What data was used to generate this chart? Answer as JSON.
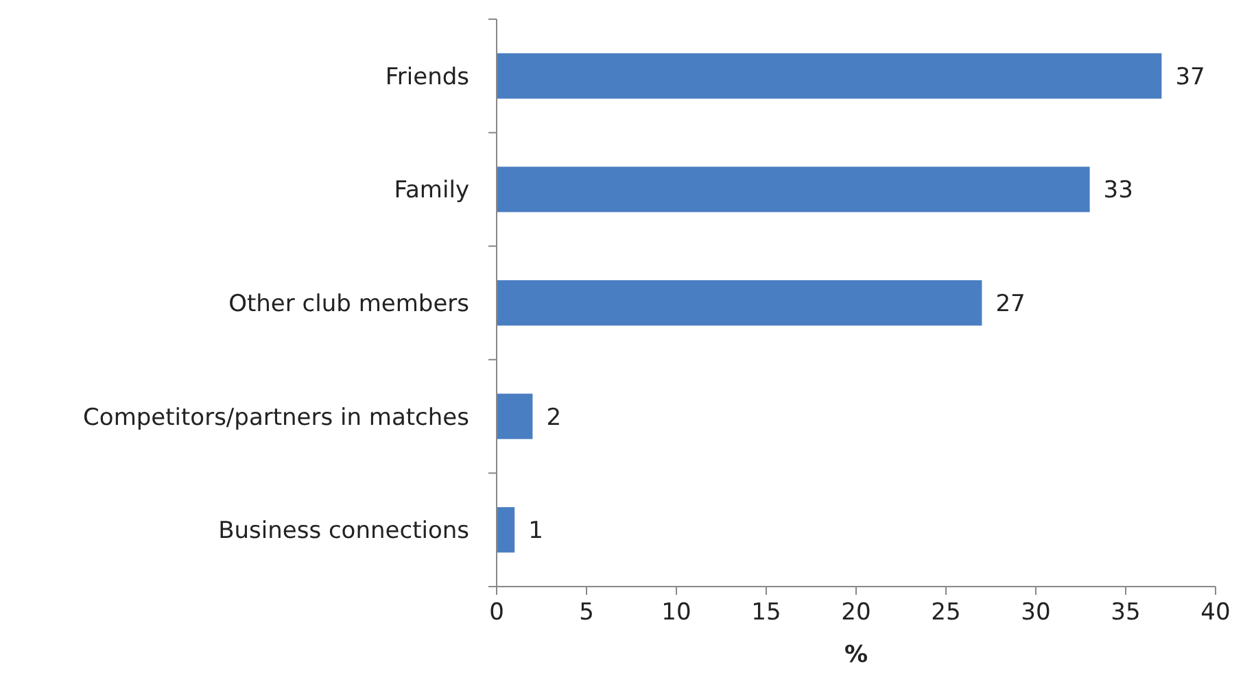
{
  "chart_data": {
    "type": "bar",
    "orientation": "horizontal",
    "categories": [
      "Friends",
      "Family",
      "Other club members",
      "Competitors/partners in matches",
      "Business connections"
    ],
    "values": [
      37,
      33,
      27,
      2,
      1
    ],
    "color": "#4a7ec2",
    "xlim": [
      0,
      40
    ],
    "xticks": [
      0,
      5,
      10,
      15,
      20,
      25,
      30,
      35,
      40
    ],
    "xlabel": "%",
    "data_labels": true,
    "grid": false
  }
}
